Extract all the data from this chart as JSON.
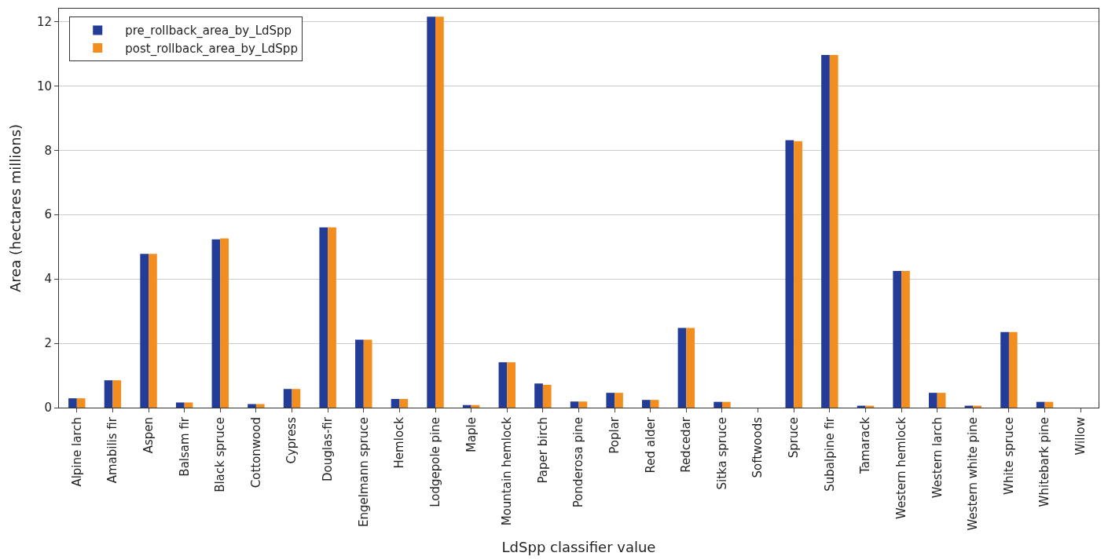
{
  "chart_data": {
    "type": "bar",
    "xlabel": "LdSpp classifier value",
    "ylabel": "Area (hectares millions)",
    "categories": [
      "Alpine larch",
      "Amabilis fir",
      "Aspen",
      "Balsam fir",
      "Black spruce",
      "Cottonwood",
      "Cypress",
      "Douglas-fir",
      "Engelmann spruce",
      "Hemlock",
      "Lodgepole pine",
      "Maple",
      "Mountain hemlock",
      "Paper birch",
      "Ponderosa pine",
      "Poplar",
      "Red alder",
      "Redcedar",
      "Sitka spruce",
      "Softwoods",
      "Spruce",
      "Subalpine fir",
      "Tamarack",
      "Western hemlock",
      "Western larch",
      "Western white pine",
      "White spruce",
      "Whitebark pine",
      "Willow"
    ],
    "series": [
      {
        "name": "pre_rollback_area_by_LdSpp",
        "color": "#233c97",
        "values": [
          0.29,
          0.85,
          4.78,
          0.16,
          5.23,
          0.11,
          0.58,
          5.6,
          2.11,
          0.27,
          12.15,
          0.08,
          1.41,
          0.75,
          0.19,
          0.46,
          0.24,
          2.48,
          0.18,
          0,
          8.31,
          10.96,
          0.06,
          4.25,
          0.46,
          0.06,
          2.35,
          0.18,
          0
        ]
      },
      {
        "name": "post_rollback_area_by_LdSpp",
        "color": "#f28d1f",
        "values": [
          0.29,
          0.85,
          4.78,
          0.16,
          5.26,
          0.11,
          0.58,
          5.6,
          2.11,
          0.27,
          12.15,
          0.08,
          1.41,
          0.71,
          0.19,
          0.46,
          0.24,
          2.48,
          0.18,
          0,
          8.28,
          10.96,
          0.06,
          4.25,
          0.46,
          0.06,
          2.35,
          0.18,
          0
        ]
      }
    ],
    "ylim": [
      0,
      12.4
    ],
    "yticks": [
      0,
      2,
      4,
      6,
      8,
      10,
      12
    ],
    "grid": "y",
    "legend": "top left"
  }
}
